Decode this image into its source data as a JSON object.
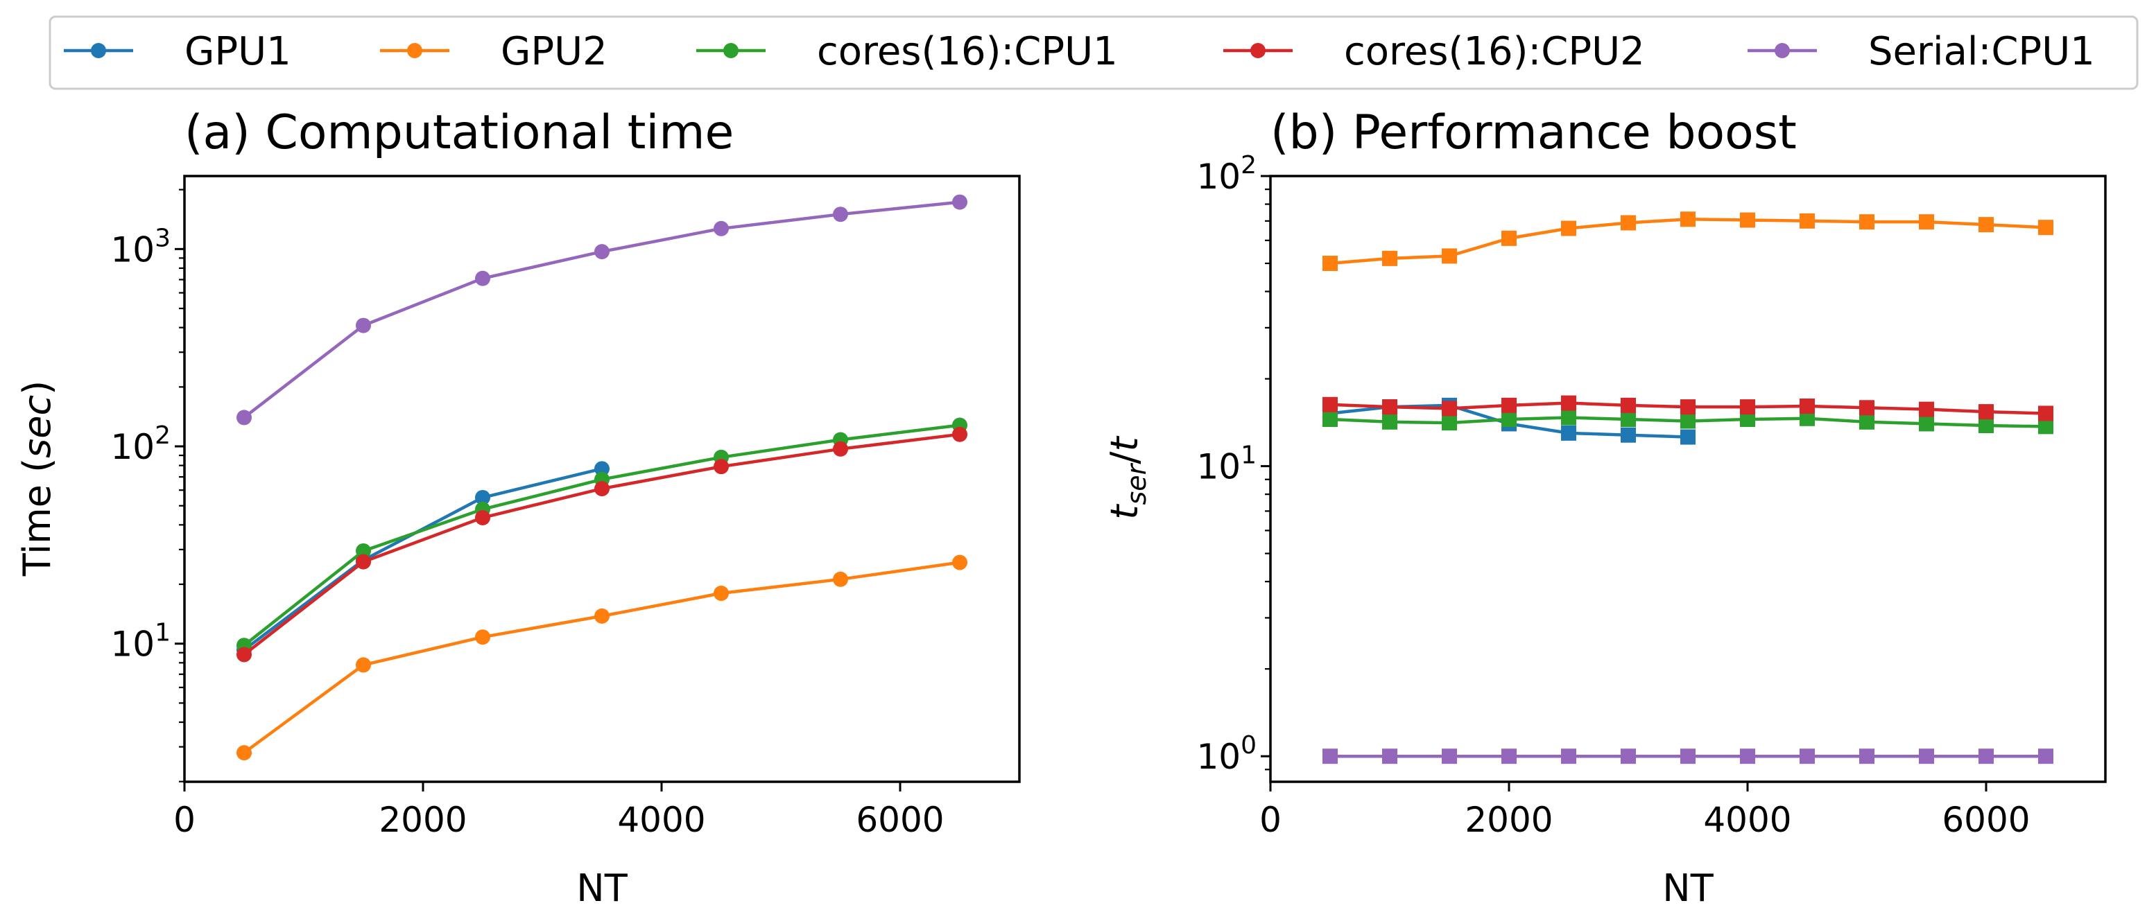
{
  "legend": {
    "position": "top, outside",
    "entries": [
      {
        "label": "GPU1",
        "color": "#1f77b4"
      },
      {
        "label": "GPU2",
        "color": "#ff7f0e"
      },
      {
        "label": "cores(16):CPU1",
        "color": "#2ca02c"
      },
      {
        "label": "cores(16):CPU2",
        "color": "#d62728"
      },
      {
        "label": "Serial:CPU1",
        "color": "#9467bd"
      }
    ]
  },
  "chart_data": [
    {
      "id": "a",
      "type": "line",
      "marker": "circle",
      "title": "(a) Computational time",
      "xlabel": "NT",
      "ylabel": {
        "prefix": "Time (",
        "italic": "sec",
        "suffix": ")"
      },
      "xscale": "linear",
      "yscale": "log",
      "xlim": [
        0,
        7000
      ],
      "ylim_log10": [
        0.3,
        3.37
      ],
      "xticks": [
        0,
        2000,
        4000,
        6000
      ],
      "yticks": [
        {
          "value": 10,
          "mantissa": "10",
          "exponent": "1"
        },
        {
          "value": 100,
          "mantissa": "10",
          "exponent": "2"
        },
        {
          "value": 1000,
          "mantissa": "10",
          "exponent": "3"
        }
      ],
      "series": [
        {
          "name": "GPU1",
          "color": "#1f77b4",
          "x": [
            500,
            1500,
            2500,
            3500
          ],
          "y": [
            9.3,
            26.5,
            55,
            77
          ]
        },
        {
          "name": "GPU2",
          "color": "#ff7f0e",
          "x": [
            500,
            1500,
            2500,
            3500,
            4500,
            5500,
            6500
          ],
          "y": [
            2.8,
            7.8,
            10.8,
            13.8,
            18,
            21.2,
            25.8
          ]
        },
        {
          "name": "cores(16):CPU1",
          "color": "#2ca02c",
          "x": [
            500,
            1500,
            2500,
            3500,
            4500,
            5500,
            6500
          ],
          "y": [
            9.8,
            29.5,
            48,
            68,
            88,
            108,
            128
          ]
        },
        {
          "name": "cores(16):CPU2",
          "color": "#d62728",
          "x": [
            500,
            1500,
            2500,
            3500,
            4500,
            5500,
            6500
          ],
          "y": [
            8.8,
            26,
            43.5,
            61,
            79,
            97,
            115
          ]
        },
        {
          "name": "Serial:CPU1",
          "color": "#9467bd",
          "x": [
            500,
            1500,
            2500,
            3500,
            4500,
            5500,
            6500
          ],
          "y": [
            140,
            410,
            710,
            970,
            1270,
            1500,
            1730
          ]
        }
      ]
    },
    {
      "id": "b",
      "type": "line",
      "marker": "square",
      "title": "(b) Performance boost",
      "xlabel": "NT",
      "ylabel": {
        "base": "t",
        "sub": "ser",
        "slash": "/",
        "denom": "t"
      },
      "xscale": "linear",
      "yscale": "log",
      "xlim": [
        0,
        7000
      ],
      "ylim_log10": [
        -0.088,
        2
      ],
      "xticks": [
        0,
        2000,
        4000,
        6000
      ],
      "yticks": [
        {
          "value": 1,
          "mantissa": "10",
          "exponent": "0"
        },
        {
          "value": 10,
          "mantissa": "10",
          "exponent": "1"
        },
        {
          "value": 100,
          "mantissa": "10",
          "exponent": "2"
        }
      ],
      "series": [
        {
          "name": "GPU1",
          "color": "#1f77b4",
          "x": [
            500,
            1000,
            1500,
            2000,
            2500,
            3000,
            3500
          ],
          "y": [
            15.2,
            16,
            16.2,
            14,
            13,
            12.8,
            12.6
          ]
        },
        {
          "name": "GPU2",
          "color": "#ff7f0e",
          "x": [
            500,
            1000,
            1500,
            2000,
            2500,
            3000,
            3500,
            4000,
            4500,
            5000,
            5500,
            6000,
            6500
          ],
          "y": [
            50,
            52,
            53,
            61,
            66,
            69,
            71,
            70.5,
            70,
            69.5,
            69.5,
            68,
            66.5
          ]
        },
        {
          "name": "cores(16):CPU1",
          "color": "#2ca02c",
          "x": [
            500,
            1000,
            1500,
            2000,
            2500,
            3000,
            3500,
            4000,
            4500,
            5000,
            5500,
            6000,
            6500
          ],
          "y": [
            14.5,
            14.2,
            14.1,
            14.5,
            14.7,
            14.5,
            14.3,
            14.5,
            14.6,
            14.2,
            14,
            13.8,
            13.7
          ]
        },
        {
          "name": "cores(16):CPU2",
          "color": "#d62728",
          "x": [
            500,
            1000,
            1500,
            2000,
            2500,
            3000,
            3500,
            4000,
            4500,
            5000,
            5500,
            6000,
            6500
          ],
          "y": [
            16.3,
            16,
            15.8,
            16.2,
            16.5,
            16.2,
            16,
            16,
            16.1,
            15.9,
            15.7,
            15.4,
            15.2
          ]
        },
        {
          "name": "Serial:CPU1",
          "color": "#9467bd",
          "x": [
            500,
            1000,
            1500,
            2000,
            2500,
            3000,
            3500,
            4000,
            4500,
            5000,
            5500,
            6000,
            6500
          ],
          "y": [
            1,
            1,
            1,
            1,
            1,
            1,
            1,
            1,
            1,
            1,
            1,
            1,
            1
          ]
        }
      ]
    }
  ]
}
